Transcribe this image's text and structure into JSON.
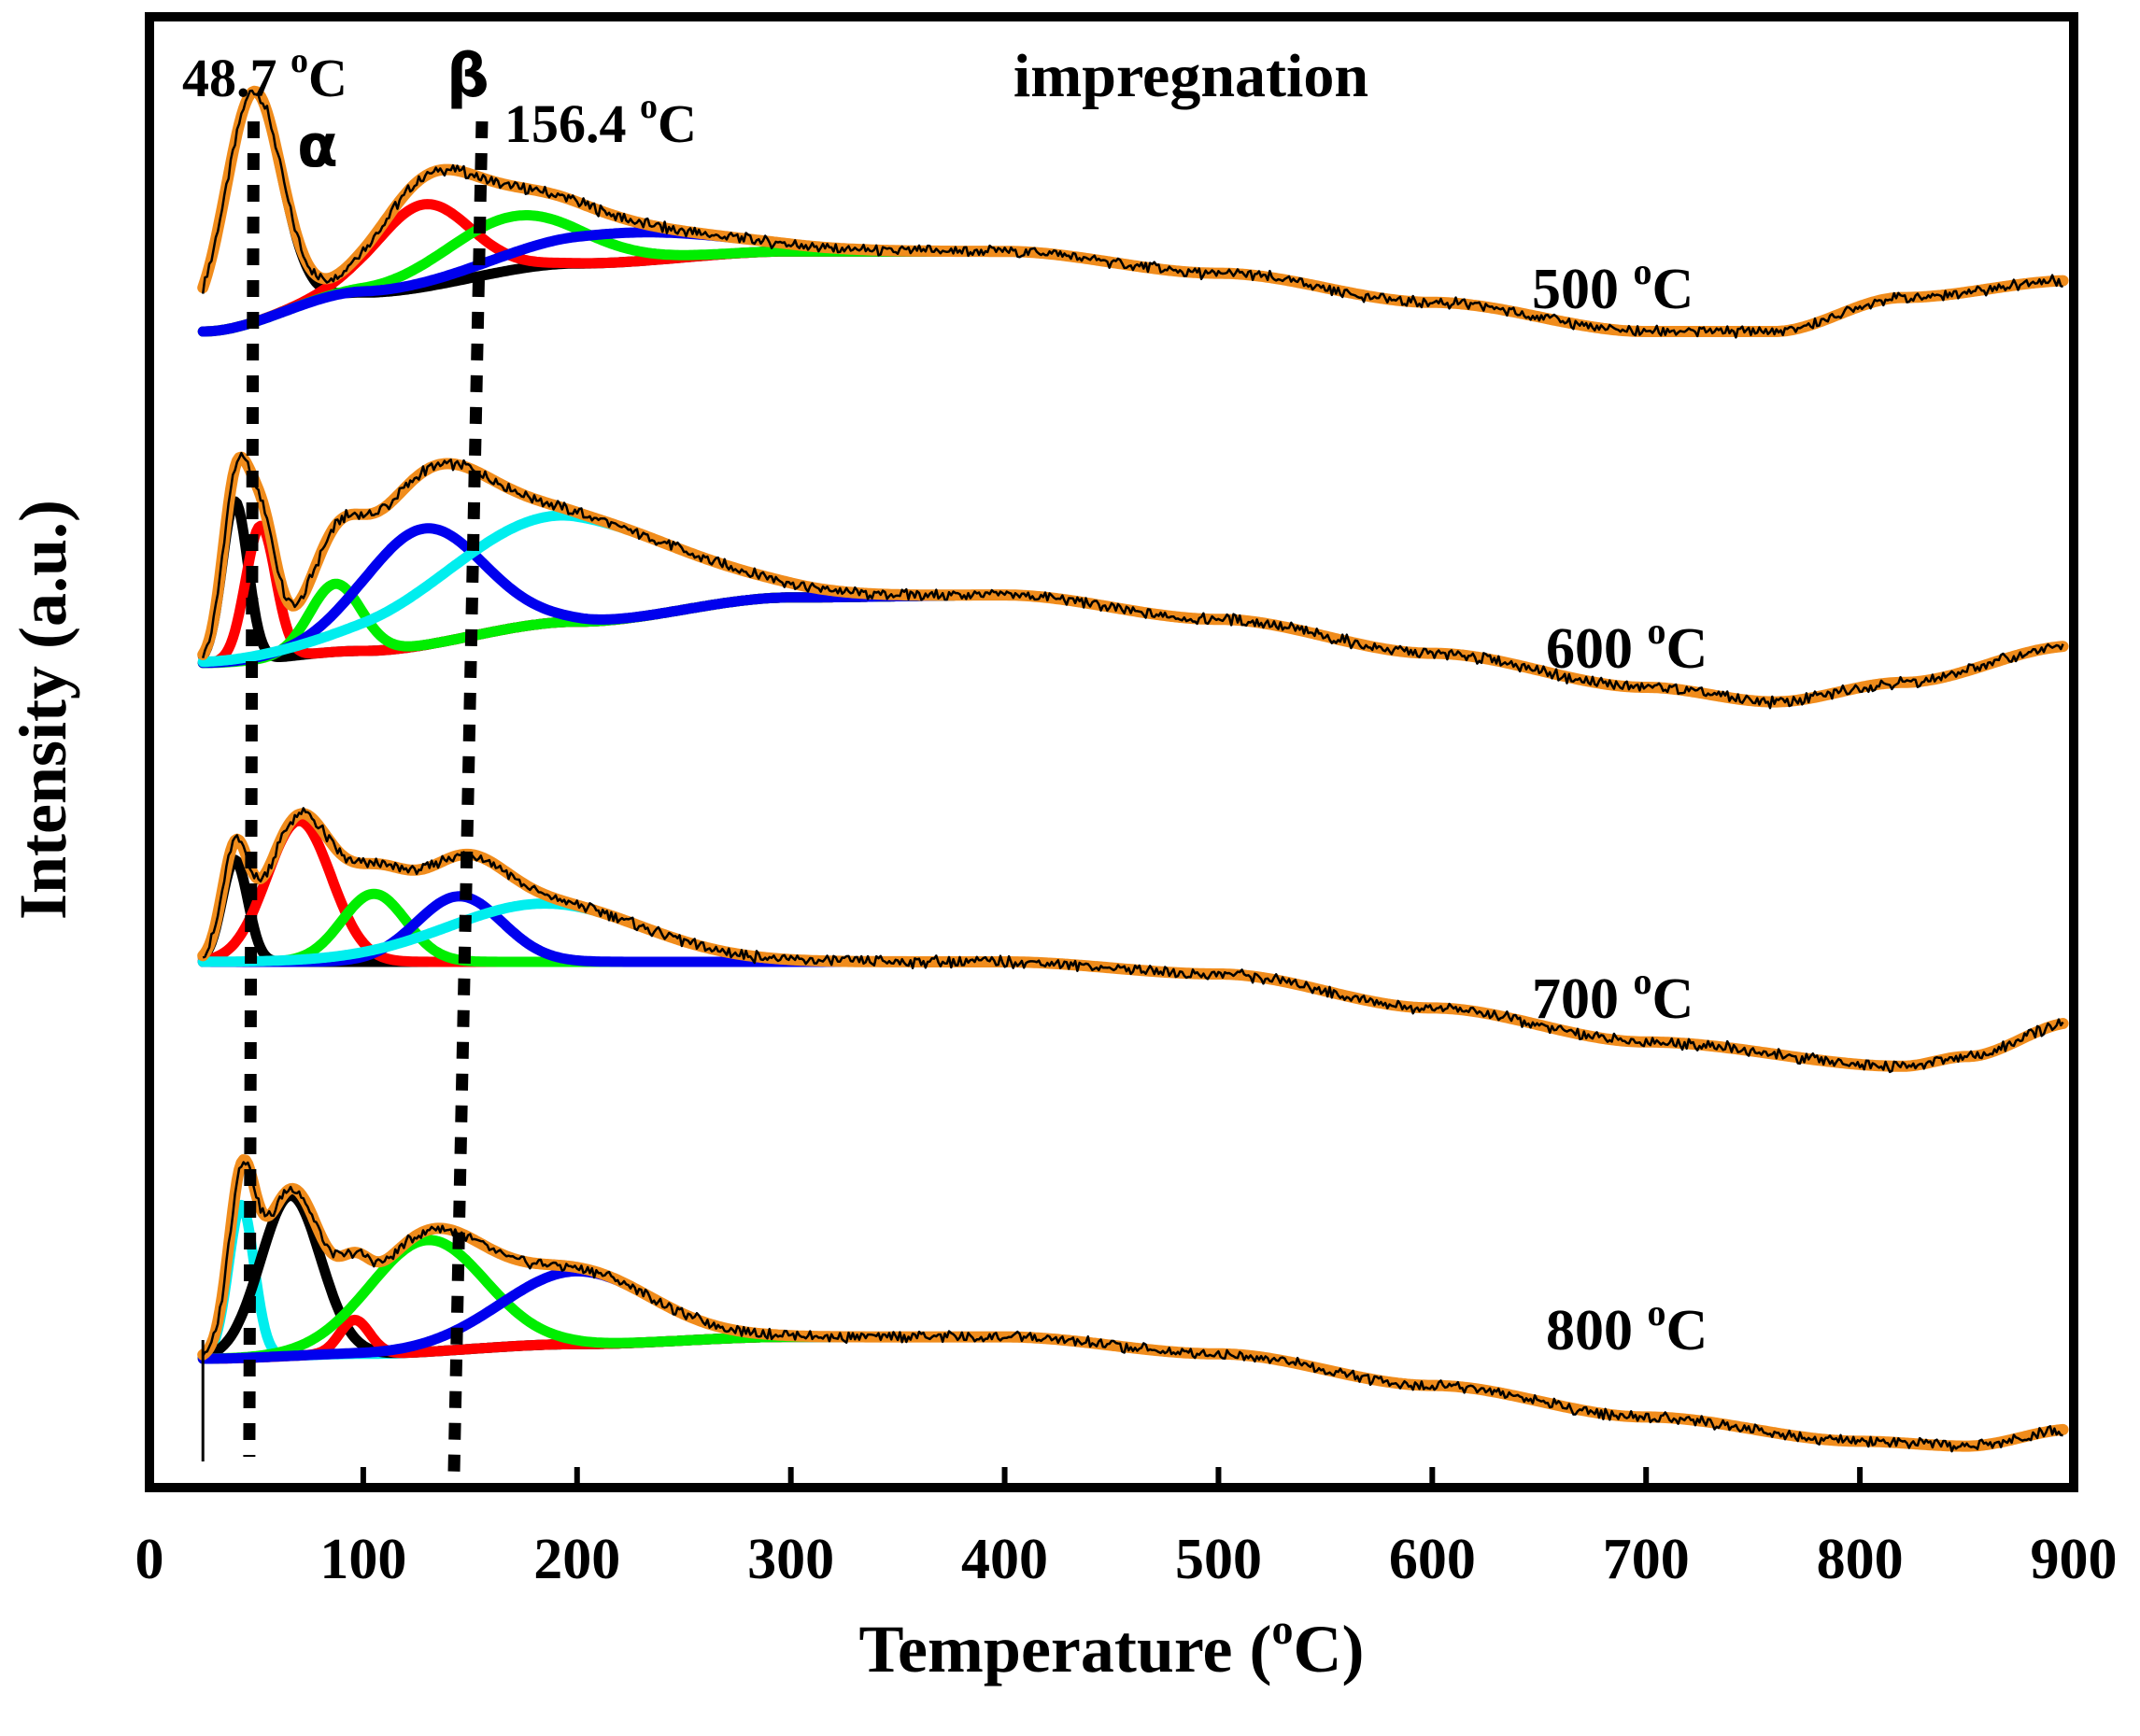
{
  "chart_data": {
    "type": "line",
    "title": "impregnation",
    "xlabel": "Temperature (",
    "xlabel_sup": "o",
    "xlabel_end": "C)",
    "ylabel": "Intensity (a.u.)",
    "xlim": [
      0,
      900
    ],
    "x_ticks": [
      "0",
      "100",
      "200",
      "300",
      "400",
      "500",
      "600",
      "700",
      "800",
      "900"
    ],
    "y_ticks_shown": false,
    "colors": {
      "envelope": "#f08c1c",
      "measured": "#000000",
      "peak_black": "#000000",
      "peak_red": "#ff0000",
      "peak_green": "#00ee00",
      "peak_blue": "#0000ee",
      "peak_cyan": "#00eeee",
      "guide": "#000000"
    },
    "annotations": {
      "alpha": {
        "value": "48.7 ",
        "sup": "o",
        "unit": "C",
        "symbol": "α",
        "x": 48.7
      },
      "beta": {
        "value": "156.4 ",
        "sup": "o",
        "unit": "C",
        "symbol": "β",
        "x": 156.4
      }
    },
    "series": [
      {
        "name": "500",
        "label_num": "500 ",
        "label_sup": "o",
        "label_unit": "C",
        "baseline": [
          [
            25,
            0.0
          ],
          [
            100,
            0.16
          ],
          [
            200,
            0.28
          ],
          [
            300,
            0.33
          ],
          [
            400,
            0.33
          ],
          [
            500,
            0.24
          ],
          [
            600,
            0.12
          ],
          [
            700,
            0.0
          ],
          [
            760,
            0.0
          ],
          [
            820,
            0.14
          ],
          [
            900,
            0.21
          ]
        ],
        "peaks": [
          {
            "color": "peak_black",
            "center": 48.7,
            "height": 0.95,
            "width": 13
          },
          {
            "color": "peak_red",
            "center": 128,
            "height": 0.34,
            "width": 22
          },
          {
            "color": "peak_green",
            "center": 170,
            "height": 0.22,
            "width": 32
          },
          {
            "color": "peak_blue",
            "center": 220,
            "height": 0.12,
            "width": 48
          }
        ]
      },
      {
        "name": "600",
        "label_num": "600 ",
        "label_sup": "o",
        "label_unit": "C",
        "baseline": [
          [
            25,
            0.0
          ],
          [
            100,
            0.05
          ],
          [
            200,
            0.17
          ],
          [
            300,
            0.27
          ],
          [
            400,
            0.28
          ],
          [
            500,
            0.18
          ],
          [
            600,
            0.04
          ],
          [
            700,
            -0.1
          ],
          [
            760,
            -0.16
          ],
          [
            820,
            -0.08
          ],
          [
            900,
            0.07
          ]
        ],
        "peaks": [
          {
            "color": "peak_black",
            "center": 40,
            "height": 0.66,
            "width": 6
          },
          {
            "color": "peak_red",
            "center": 52,
            "height": 0.55,
            "width": 7
          },
          {
            "color": "peak_green",
            "center": 87,
            "height": 0.28,
            "width": 12
          },
          {
            "color": "peak_blue",
            "center": 128,
            "height": 0.48,
            "width": 28
          },
          {
            "color": "peak_cyan",
            "center": 190,
            "height": 0.44,
            "width": 55
          }
        ]
      },
      {
        "name": "700",
        "label_num": "700 ",
        "label_sup": "o",
        "label_unit": "C",
        "baseline": [
          [
            25,
            0.0
          ],
          [
            100,
            0.0
          ],
          [
            200,
            0.0
          ],
          [
            300,
            0.0
          ],
          [
            400,
            0.0
          ],
          [
            500,
            -0.05
          ],
          [
            600,
            -0.19
          ],
          [
            700,
            -0.33
          ],
          [
            820,
            -0.43
          ],
          [
            850,
            -0.39
          ],
          [
            900,
            -0.25
          ]
        ],
        "peaks": [
          {
            "color": "peak_black",
            "center": 40,
            "height": 0.42,
            "width": 6
          },
          {
            "color": "peak_red",
            "center": 70,
            "height": 0.58,
            "width": 15
          },
          {
            "color": "peak_green",
            "center": 105,
            "height": 0.28,
            "width": 15
          },
          {
            "color": "peak_blue",
            "center": 145,
            "height": 0.27,
            "width": 20
          },
          {
            "color": "peak_cyan",
            "center": 185,
            "height": 0.24,
            "width": 45
          }
        ]
      },
      {
        "name": "800",
        "label_num": "800 ",
        "label_sup": "o",
        "label_unit": "C",
        "baseline": [
          [
            25,
            0.0
          ],
          [
            100,
            0.02
          ],
          [
            200,
            0.06
          ],
          [
            300,
            0.09
          ],
          [
            400,
            0.09
          ],
          [
            500,
            0.02
          ],
          [
            600,
            -0.11
          ],
          [
            700,
            -0.24
          ],
          [
            800,
            -0.34
          ],
          [
            850,
            -0.36
          ],
          [
            900,
            -0.29
          ]
        ],
        "peaks": [
          {
            "color": "peak_cyan",
            "center": 43,
            "height": 0.63,
            "width": 6
          },
          {
            "color": "peak_black",
            "center": 66,
            "height": 0.66,
            "width": 14
          },
          {
            "color": "peak_red",
            "center": 96,
            "height": 0.14,
            "width": 7
          },
          {
            "color": "peak_green",
            "center": 130,
            "height": 0.46,
            "width": 27
          },
          {
            "color": "peak_blue",
            "center": 200,
            "height": 0.3,
            "width": 35
          }
        ]
      }
    ]
  }
}
